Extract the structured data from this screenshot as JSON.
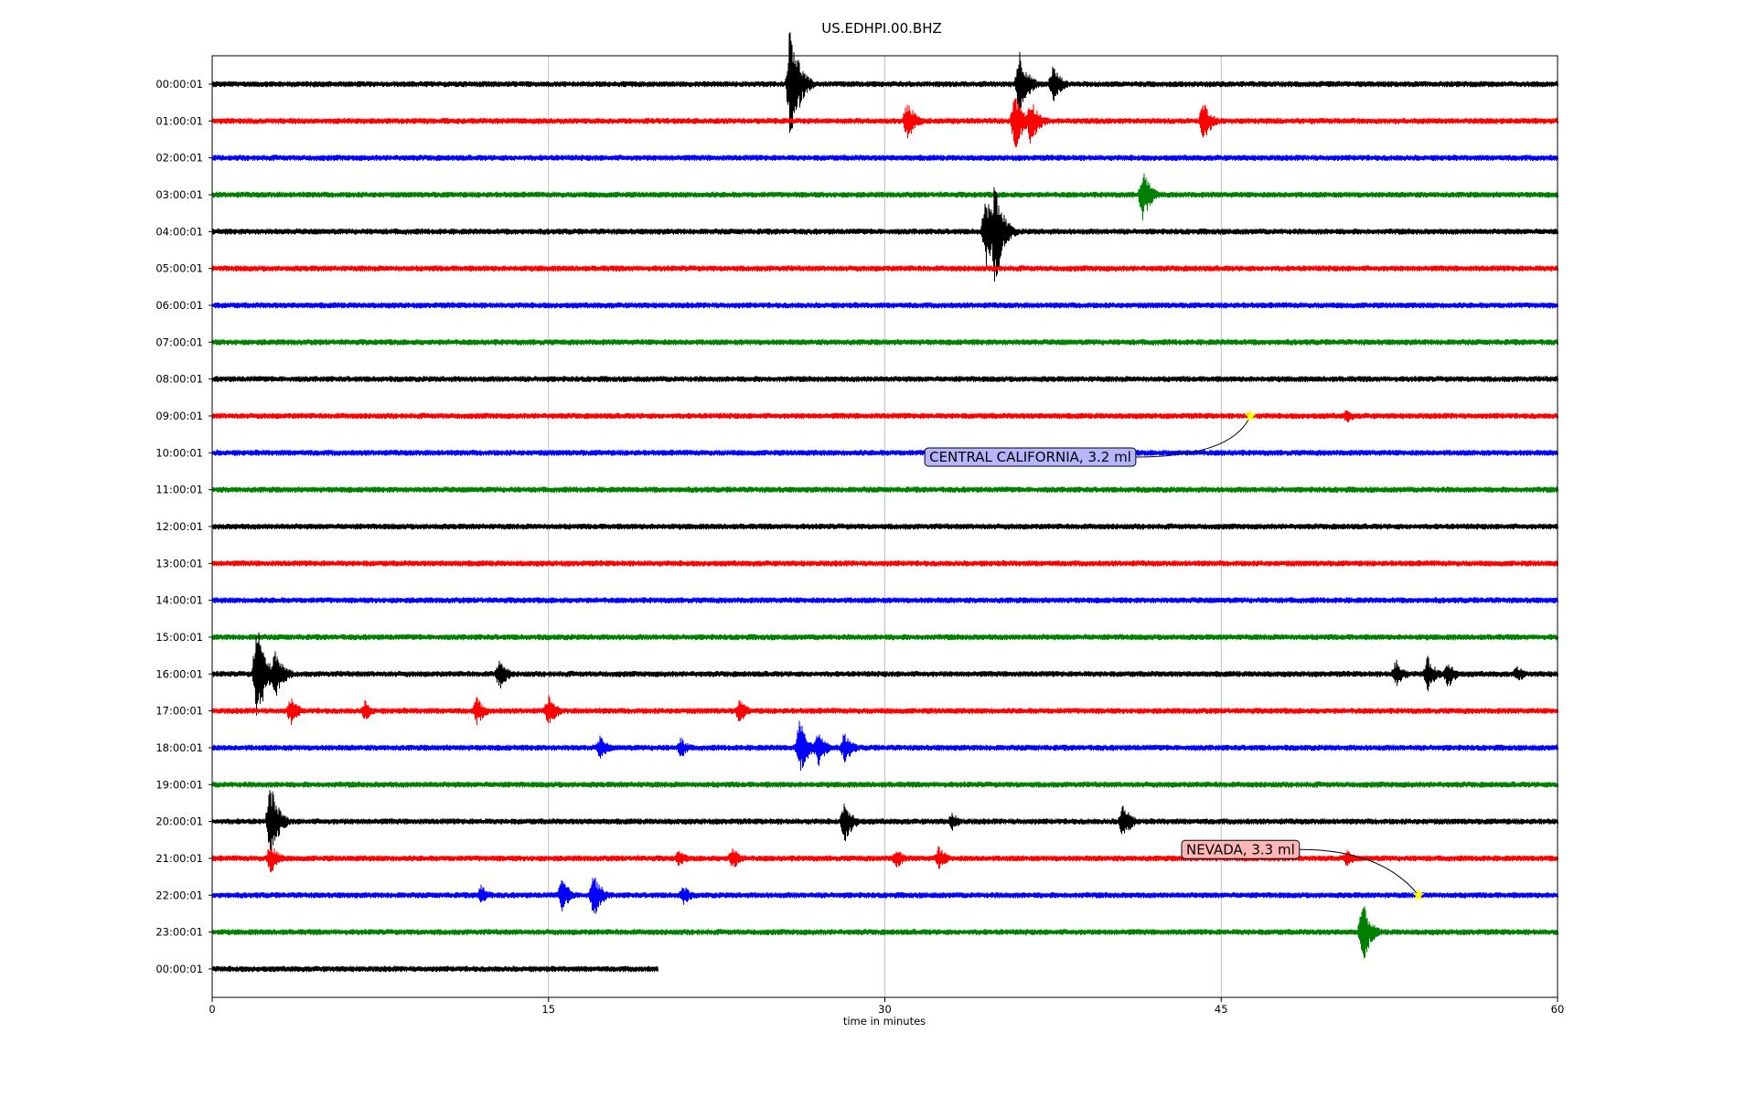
{
  "chart_data": {
    "type": "line",
    "title": "US.EDHPI.00.BHZ",
    "xlabel": "time in minutes",
    "ylabel": "",
    "xlim": [
      0,
      60
    ],
    "xticks": [
      0,
      15,
      30,
      45,
      60
    ],
    "grid": "vertical",
    "row_labels": [
      "00:00:01",
      "01:00:01",
      "02:00:01",
      "03:00:01",
      "04:00:01",
      "05:00:01",
      "06:00:01",
      "07:00:01",
      "08:00:01",
      "09:00:01",
      "10:00:01",
      "11:00:01",
      "12:00:01",
      "13:00:01",
      "14:00:01",
      "15:00:01",
      "16:00:01",
      "17:00:01",
      "18:00:01",
      "19:00:01",
      "20:00:01",
      "21:00:01",
      "22:00:01",
      "23:00:01",
      "00:00:01"
    ],
    "colors": [
      "#000000",
      "#ff0000",
      "#0000ff",
      "#008000"
    ],
    "last_row_end_minute": 19.9,
    "bursts": [
      {
        "row": 0,
        "minute": 25.8,
        "amp": 1.9
      },
      {
        "row": 0,
        "minute": 36.0,
        "amp": 1.0
      },
      {
        "row": 0,
        "minute": 37.5,
        "amp": 0.55
      },
      {
        "row": 1,
        "minute": 31.0,
        "amp": 0.6
      },
      {
        "row": 1,
        "minute": 35.8,
        "amp": 0.9
      },
      {
        "row": 1,
        "minute": 36.5,
        "amp": 0.7
      },
      {
        "row": 1,
        "minute": 44.2,
        "amp": 0.6
      },
      {
        "row": 3,
        "minute": 41.5,
        "amp": 0.75
      },
      {
        "row": 4,
        "minute": 34.5,
        "amp": 1.1
      },
      {
        "row": 4,
        "minute": 34.9,
        "amp": 1.6
      },
      {
        "row": 9,
        "minute": 50.6,
        "amp": 0.2
      },
      {
        "row": 16,
        "minute": 2.0,
        "amp": 1.5
      },
      {
        "row": 16,
        "minute": 2.8,
        "amp": 0.8
      },
      {
        "row": 16,
        "minute": 12.8,
        "amp": 0.45
      },
      {
        "row": 16,
        "minute": 52.8,
        "amp": 0.4
      },
      {
        "row": 16,
        "minute": 54.2,
        "amp": 0.5
      },
      {
        "row": 16,
        "minute": 55.1,
        "amp": 0.4
      },
      {
        "row": 16,
        "minute": 58.2,
        "amp": 0.25
      },
      {
        "row": 17,
        "minute": 3.5,
        "amp": 0.4
      },
      {
        "row": 17,
        "minute": 6.8,
        "amp": 0.3
      },
      {
        "row": 17,
        "minute": 11.8,
        "amp": 0.4
      },
      {
        "row": 17,
        "minute": 15.0,
        "amp": 0.45
      },
      {
        "row": 17,
        "minute": 23.5,
        "amp": 0.35
      },
      {
        "row": 18,
        "minute": 17.3,
        "amp": 0.35
      },
      {
        "row": 18,
        "minute": 20.9,
        "amp": 0.3
      },
      {
        "row": 18,
        "minute": 26.2,
        "amp": 0.8
      },
      {
        "row": 18,
        "minute": 27.0,
        "amp": 0.55
      },
      {
        "row": 18,
        "minute": 28.2,
        "amp": 0.45
      },
      {
        "row": 20,
        "minute": 2.6,
        "amp": 1.1
      },
      {
        "row": 20,
        "minute": 28.2,
        "amp": 0.6
      },
      {
        "row": 20,
        "minute": 33.0,
        "amp": 0.25
      },
      {
        "row": 20,
        "minute": 40.6,
        "amp": 0.55
      },
      {
        "row": 21,
        "minute": 2.6,
        "amp": 0.45
      },
      {
        "row": 21,
        "minute": 20.8,
        "amp": 0.25
      },
      {
        "row": 21,
        "minute": 23.2,
        "amp": 0.35
      },
      {
        "row": 21,
        "minute": 30.5,
        "amp": 0.3
      },
      {
        "row": 21,
        "minute": 32.4,
        "amp": 0.35
      },
      {
        "row": 21,
        "minute": 50.6,
        "amp": 0.25
      },
      {
        "row": 22,
        "minute": 12.0,
        "amp": 0.3
      },
      {
        "row": 22,
        "minute": 15.6,
        "amp": 0.5
      },
      {
        "row": 22,
        "minute": 17.0,
        "amp": 0.65
      },
      {
        "row": 22,
        "minute": 21.0,
        "amp": 0.3
      },
      {
        "row": 23,
        "minute": 51.3,
        "amp": 0.9
      }
    ],
    "annotations": [
      {
        "text": "CENTRAL CALIFORNIA, 3.2 ml",
        "row": 9,
        "minute": 46.3,
        "box_color": "#b6b6ff"
      },
      {
        "text": "NEVADA, 3.3 ml",
        "row": 22,
        "minute": 53.8,
        "box_color": "#ffb6b6"
      }
    ],
    "event_marker_color": "#ffff00"
  }
}
